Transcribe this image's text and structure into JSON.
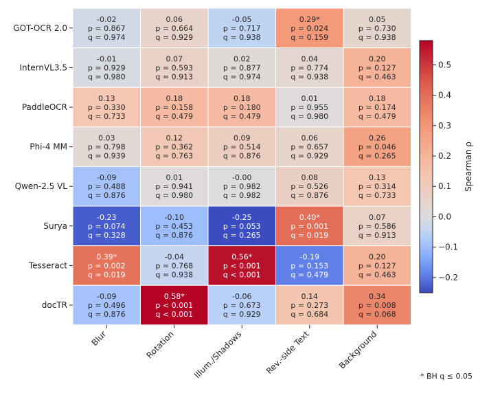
{
  "chart_data": {
    "type": "heatmap",
    "rows": [
      "GOT-OCR 2.0",
      "InternVL3.5",
      "PaddleOCR",
      "Phi-4 MM",
      "Qwen-2.5 VL",
      "Surya",
      "Tesseract",
      "docTR"
    ],
    "columns": [
      "Blur",
      "Rotation",
      "Illum./Shadows",
      "Rev.-side Text",
      "Background"
    ],
    "values": [
      [
        "-0.02",
        "0.06",
        "-0.05",
        "0.29",
        "0.05"
      ],
      [
        "-0.01",
        "0.07",
        "0.02",
        "0.04",
        "0.20"
      ],
      [
        "0.13",
        "0.18",
        "0.18",
        "0.01",
        "0.18"
      ],
      [
        "0.03",
        "0.12",
        "0.09",
        "0.06",
        "0.26"
      ],
      [
        "-0.09",
        "0.01",
        "-0.00",
        "0.08",
        "0.13"
      ],
      [
        "-0.23",
        "-0.10",
        "-0.25",
        "0.40",
        "0.07"
      ],
      [
        "0.39",
        "-0.04",
        "0.56",
        "-0.19",
        "0.20"
      ],
      [
        "-0.09",
        "0.58",
        "-0.06",
        "0.14",
        "0.34"
      ]
    ],
    "significant": [
      [
        false,
        false,
        false,
        true,
        false
      ],
      [
        false,
        false,
        false,
        false,
        false
      ],
      [
        false,
        false,
        false,
        false,
        false
      ],
      [
        false,
        false,
        false,
        false,
        false
      ],
      [
        false,
        false,
        false,
        false,
        false
      ],
      [
        false,
        false,
        false,
        true,
        false
      ],
      [
        true,
        false,
        true,
        false,
        false
      ],
      [
        false,
        true,
        false,
        false,
        false
      ]
    ],
    "p_text": [
      [
        "p = 0.867",
        "p = 0.664",
        "p = 0.717",
        "p = 0.024",
        "p = 0.730"
      ],
      [
        "p = 0.929",
        "p = 0.593",
        "p = 0.877",
        "p = 0.774",
        "p = 0.127"
      ],
      [
        "p = 0.330",
        "p = 0.158",
        "p = 0.180",
        "p = 0.955",
        "p = 0.174"
      ],
      [
        "p = 0.798",
        "p = 0.362",
        "p = 0.514",
        "p = 0.657",
        "p = 0.046"
      ],
      [
        "p = 0.488",
        "p = 0.941",
        "p = 0.982",
        "p = 0.526",
        "p = 0.314"
      ],
      [
        "p = 0.074",
        "p = 0.453",
        "p = 0.053",
        "p = 0.001",
        "p = 0.586"
      ],
      [
        "p = 0.002",
        "p = 0.768",
        "p < 0.001",
        "p = 0.153",
        "p = 0.127"
      ],
      [
        "p = 0.496",
        "p < 0.001",
        "p = 0.673",
        "p = 0.273",
        "p = 0.008"
      ]
    ],
    "q_text": [
      [
        "q = 0.974",
        "q = 0.929",
        "q = 0.938",
        "q = 0.159",
        "q = 0.938"
      ],
      [
        "q = 0.980",
        "q = 0.913",
        "q = 0.974",
        "q = 0.938",
        "q = 0.463"
      ],
      [
        "q = 0.733",
        "q = 0.479",
        "q = 0.479",
        "q = 0.980",
        "q = 0.479"
      ],
      [
        "q = 0.939",
        "q = 0.763",
        "q = 0.876",
        "q = 0.929",
        "q = 0.265"
      ],
      [
        "q = 0.876",
        "q = 0.980",
        "q = 0.982",
        "q = 0.876",
        "q = 0.733"
      ],
      [
        "q = 0.328",
        "q = 0.876",
        "q = 0.265",
        "q = 0.019",
        "q = 0.913"
      ],
      [
        "q = 0.019",
        "q = 0.938",
        "q < 0.001",
        "q = 0.479",
        "q = 0.463"
      ],
      [
        "q = 0.876",
        "q < 0.001",
        "q = 0.929",
        "q = 0.684",
        "q = 0.068"
      ]
    ],
    "significance_marker": "*",
    "colorbar": {
      "label": "Spearman ρ",
      "vmin": -0.25,
      "vmax": 0.58,
      "center": 0,
      "ticks": [
        "-0.2",
        "-0.1",
        "0.0",
        "0.1",
        "0.2",
        "0.3",
        "0.4",
        "0.5"
      ],
      "colormap": "coolwarm"
    },
    "footnote": "* BH q ≤ 0.05"
  }
}
